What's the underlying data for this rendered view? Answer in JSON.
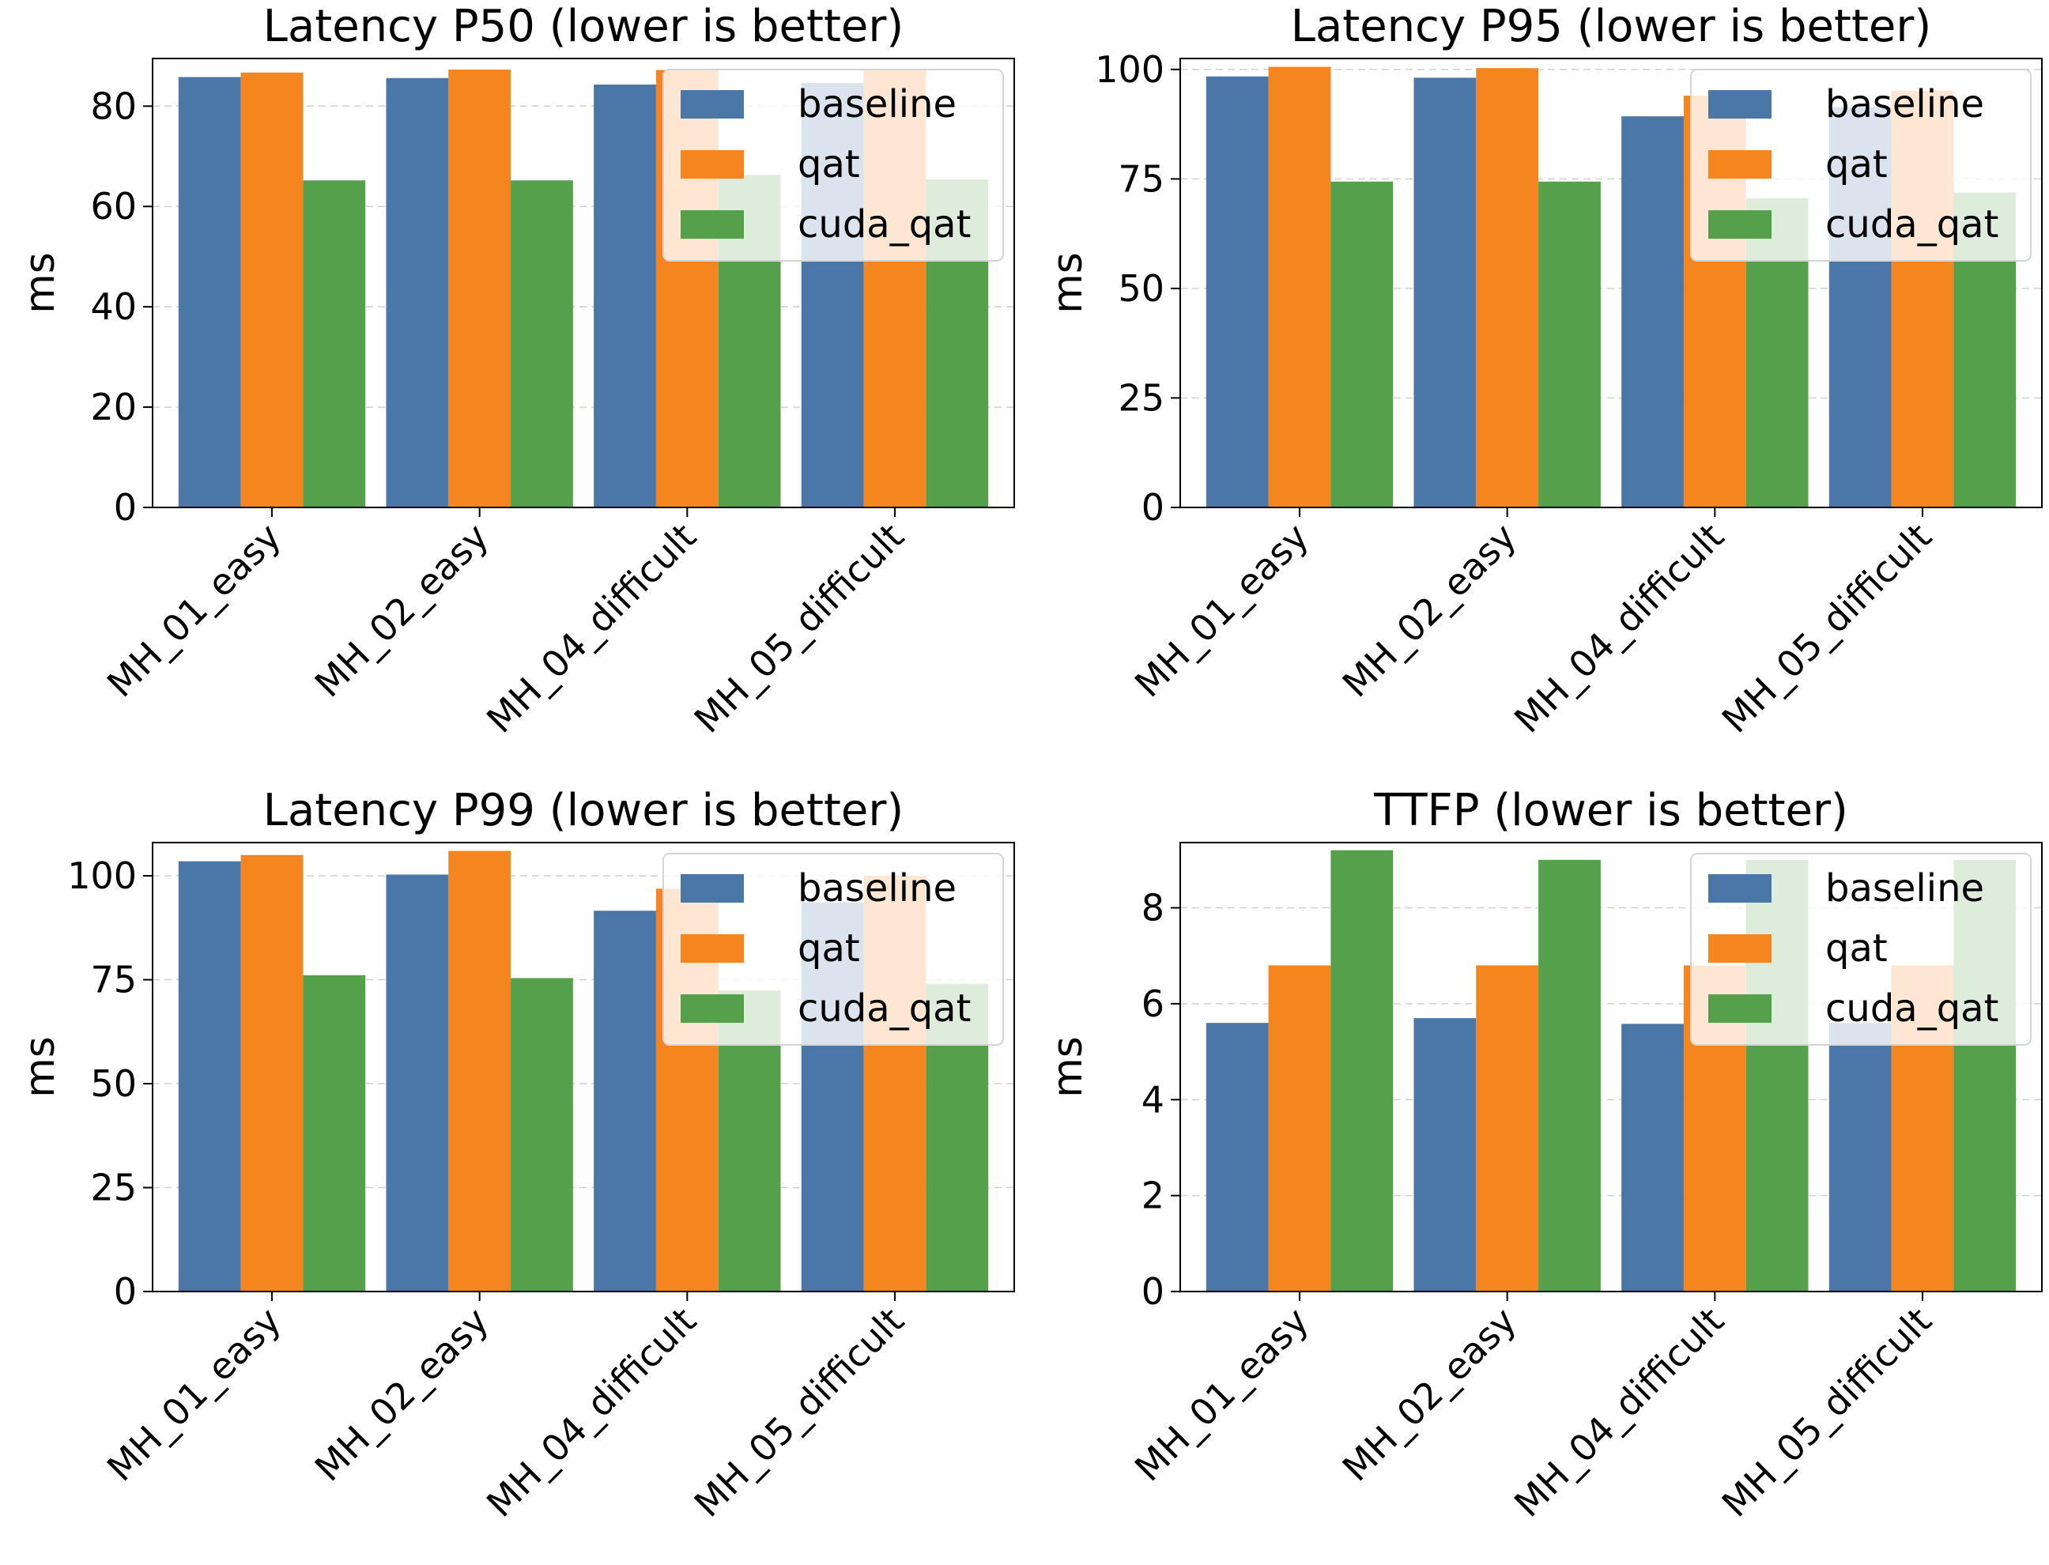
{
  "colors": {
    "baseline": "#4a77a8",
    "qat": "#f5861f",
    "cuda_qat": "#55a14b",
    "grid": "#d0d0d0",
    "axis": "#000000",
    "legend_border": "#d4d4d4"
  },
  "chart_data": [
    {
      "type": "bar",
      "title": "Latency P50 (lower is better)",
      "xlabel": "",
      "ylabel": "ms",
      "ylim": [
        0,
        89.5
      ],
      "yticks": [
        0,
        20,
        40,
        60,
        80
      ],
      "grid": true,
      "legend_position": "top-right",
      "categories": [
        "MH_01_easy",
        "MH_02_easy",
        "MH_04_difficult",
        "MH_05_difficult"
      ],
      "series": [
        {
          "name": "baseline",
          "values": [
            85.8,
            85.6,
            84.3,
            84.6
          ]
        },
        {
          "name": "qat",
          "values": [
            86.7,
            87.3,
            87.2,
            87.4
          ]
        },
        {
          "name": "cuda_qat",
          "values": [
            65.2,
            65.2,
            66.3,
            65.4
          ]
        }
      ]
    },
    {
      "type": "bar",
      "title": "Latency P95 (lower is better)",
      "xlabel": "",
      "ylabel": "ms",
      "ylim": [
        0,
        102.5
      ],
      "yticks": [
        0,
        25,
        50,
        75,
        100
      ],
      "grid": true,
      "legend_position": "top-right",
      "categories": [
        "MH_01_easy",
        "MH_02_easy",
        "MH_04_difficult",
        "MH_05_difficult"
      ],
      "series": [
        {
          "name": "baseline",
          "values": [
            98.4,
            98.1,
            89.3,
            91.4
          ]
        },
        {
          "name": "qat",
          "values": [
            100.6,
            100.3,
            94.0,
            95.1
          ]
        },
        {
          "name": "cuda_qat",
          "values": [
            74.4,
            74.4,
            70.6,
            71.9
          ]
        }
      ]
    },
    {
      "type": "bar",
      "title": "Latency P99 (lower is better)",
      "xlabel": "",
      "ylabel": "ms",
      "ylim": [
        0,
        108
      ],
      "yticks": [
        0,
        25,
        50,
        75,
        100
      ],
      "grid": true,
      "legend_position": "top-right",
      "categories": [
        "MH_01_easy",
        "MH_02_easy",
        "MH_04_difficult",
        "MH_05_difficult"
      ],
      "series": [
        {
          "name": "baseline",
          "values": [
            103.5,
            100.3,
            91.6,
            93.6
          ]
        },
        {
          "name": "qat",
          "values": [
            105.0,
            106.0,
            96.9,
            100.0
          ]
        },
        {
          "name": "cuda_qat",
          "values": [
            76.1,
            75.4,
            72.4,
            74.0
          ]
        }
      ]
    },
    {
      "type": "bar",
      "title": "TTFP (lower is better)",
      "xlabel": "",
      "ylabel": "ms",
      "ylim": [
        0,
        9.36
      ],
      "yticks": [
        0,
        2,
        4,
        6,
        8
      ],
      "grid": true,
      "legend_position": "top-right",
      "categories": [
        "MH_01_easy",
        "MH_02_easy",
        "MH_04_difficult",
        "MH_05_difficult"
      ],
      "series": [
        {
          "name": "baseline",
          "values": [
            5.6,
            5.7,
            5.58,
            5.6
          ]
        },
        {
          "name": "qat",
          "values": [
            6.8,
            6.8,
            6.8,
            6.8
          ]
        },
        {
          "name": "cuda_qat",
          "values": [
            9.2,
            9.0,
            9.0,
            9.0
          ]
        }
      ]
    }
  ]
}
